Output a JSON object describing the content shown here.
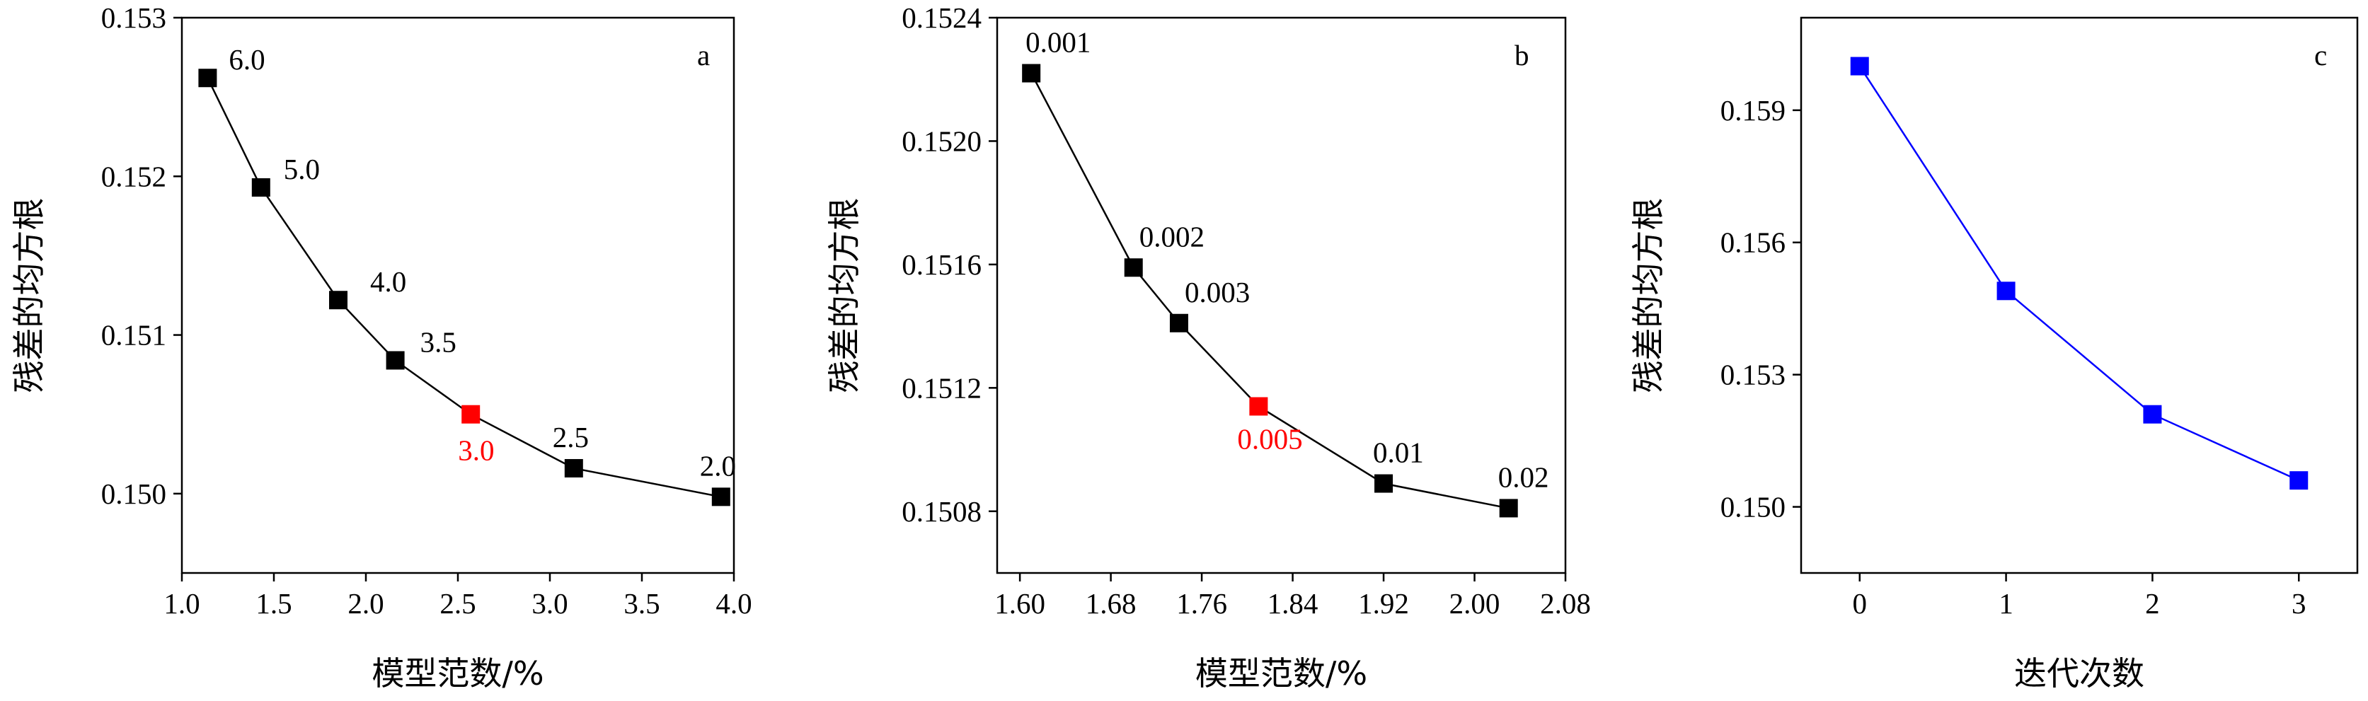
{
  "chart_data": [
    {
      "type": "line",
      "panel_label": "a",
      "xlabel": "模型范数/%",
      "ylabel": "残差的均方根",
      "xlim": [
        1.0,
        4.0
      ],
      "ylim": [
        0.1495,
        0.153
      ],
      "xticks": [
        "1.0",
        "1.5",
        "2.0",
        "2.5",
        "3.0",
        "3.5",
        "4.0"
      ],
      "yticks": [
        "0.150",
        "0.151",
        "0.152",
        "0.153"
      ],
      "line_color": "#000000",
      "marker_color": "#000000",
      "highlight_color": "#ff0000",
      "highlight_label": "3.0",
      "points": [
        {
          "x": 1.14,
          "y": 0.15262,
          "label": "6.0"
        },
        {
          "x": 1.43,
          "y": 0.15193,
          "label": "5.0"
        },
        {
          "x": 1.85,
          "y": 0.15122,
          "label": "4.0"
        },
        {
          "x": 2.16,
          "y": 0.15084,
          "label": "3.5"
        },
        {
          "x": 2.57,
          "y": 0.1505,
          "label": "3.0"
        },
        {
          "x": 3.13,
          "y": 0.15016,
          "label": "2.5"
        },
        {
          "x": 3.93,
          "y": 0.14998,
          "label": "2.0"
        }
      ]
    },
    {
      "type": "line",
      "panel_label": "b",
      "xlabel": "模型范数/%",
      "ylabel": "残差的均方根",
      "xlim": [
        1.58,
        2.08
      ],
      "ylim": [
        0.1506,
        0.1524
      ],
      "xticks": [
        "1.60",
        "1.68",
        "1.76",
        "1.84",
        "1.92",
        "2.00",
        "2.08"
      ],
      "yticks": [
        "0.1508",
        "0.1512",
        "0.1516",
        "0.1520",
        "0.1524"
      ],
      "line_color": "#000000",
      "marker_color": "#000000",
      "highlight_color": "#ff0000",
      "highlight_label": "0.005",
      "points": [
        {
          "x": 1.61,
          "y": 0.15222,
          "label": "0.001"
        },
        {
          "x": 1.7,
          "y": 0.15159,
          "label": "0.002"
        },
        {
          "x": 1.74,
          "y": 0.15141,
          "label": "0.003"
        },
        {
          "x": 1.81,
          "y": 0.15114,
          "label": "0.005"
        },
        {
          "x": 1.92,
          "y": 0.15089,
          "label": "0.01"
        },
        {
          "x": 2.03,
          "y": 0.15081,
          "label": "0.02"
        }
      ]
    },
    {
      "type": "line",
      "panel_label": "c",
      "xlabel": "迭代次数",
      "ylabel": "残差的均方根",
      "xlim": [
        -0.4,
        3.4
      ],
      "ylim": [
        0.1485,
        0.1611
      ],
      "xticks": [
        "0",
        "1",
        "2",
        "3"
      ],
      "yticks": [
        "0.150",
        "0.153",
        "0.156",
        "0.159"
      ],
      "line_color": "#0000ff",
      "marker_color": "#0000ff",
      "points": [
        {
          "x": 0,
          "y": 0.16,
          "label": ""
        },
        {
          "x": 1,
          "y": 0.1549,
          "label": ""
        },
        {
          "x": 2,
          "y": 0.1521,
          "label": ""
        },
        {
          "x": 3,
          "y": 0.1506,
          "label": ""
        }
      ]
    }
  ]
}
